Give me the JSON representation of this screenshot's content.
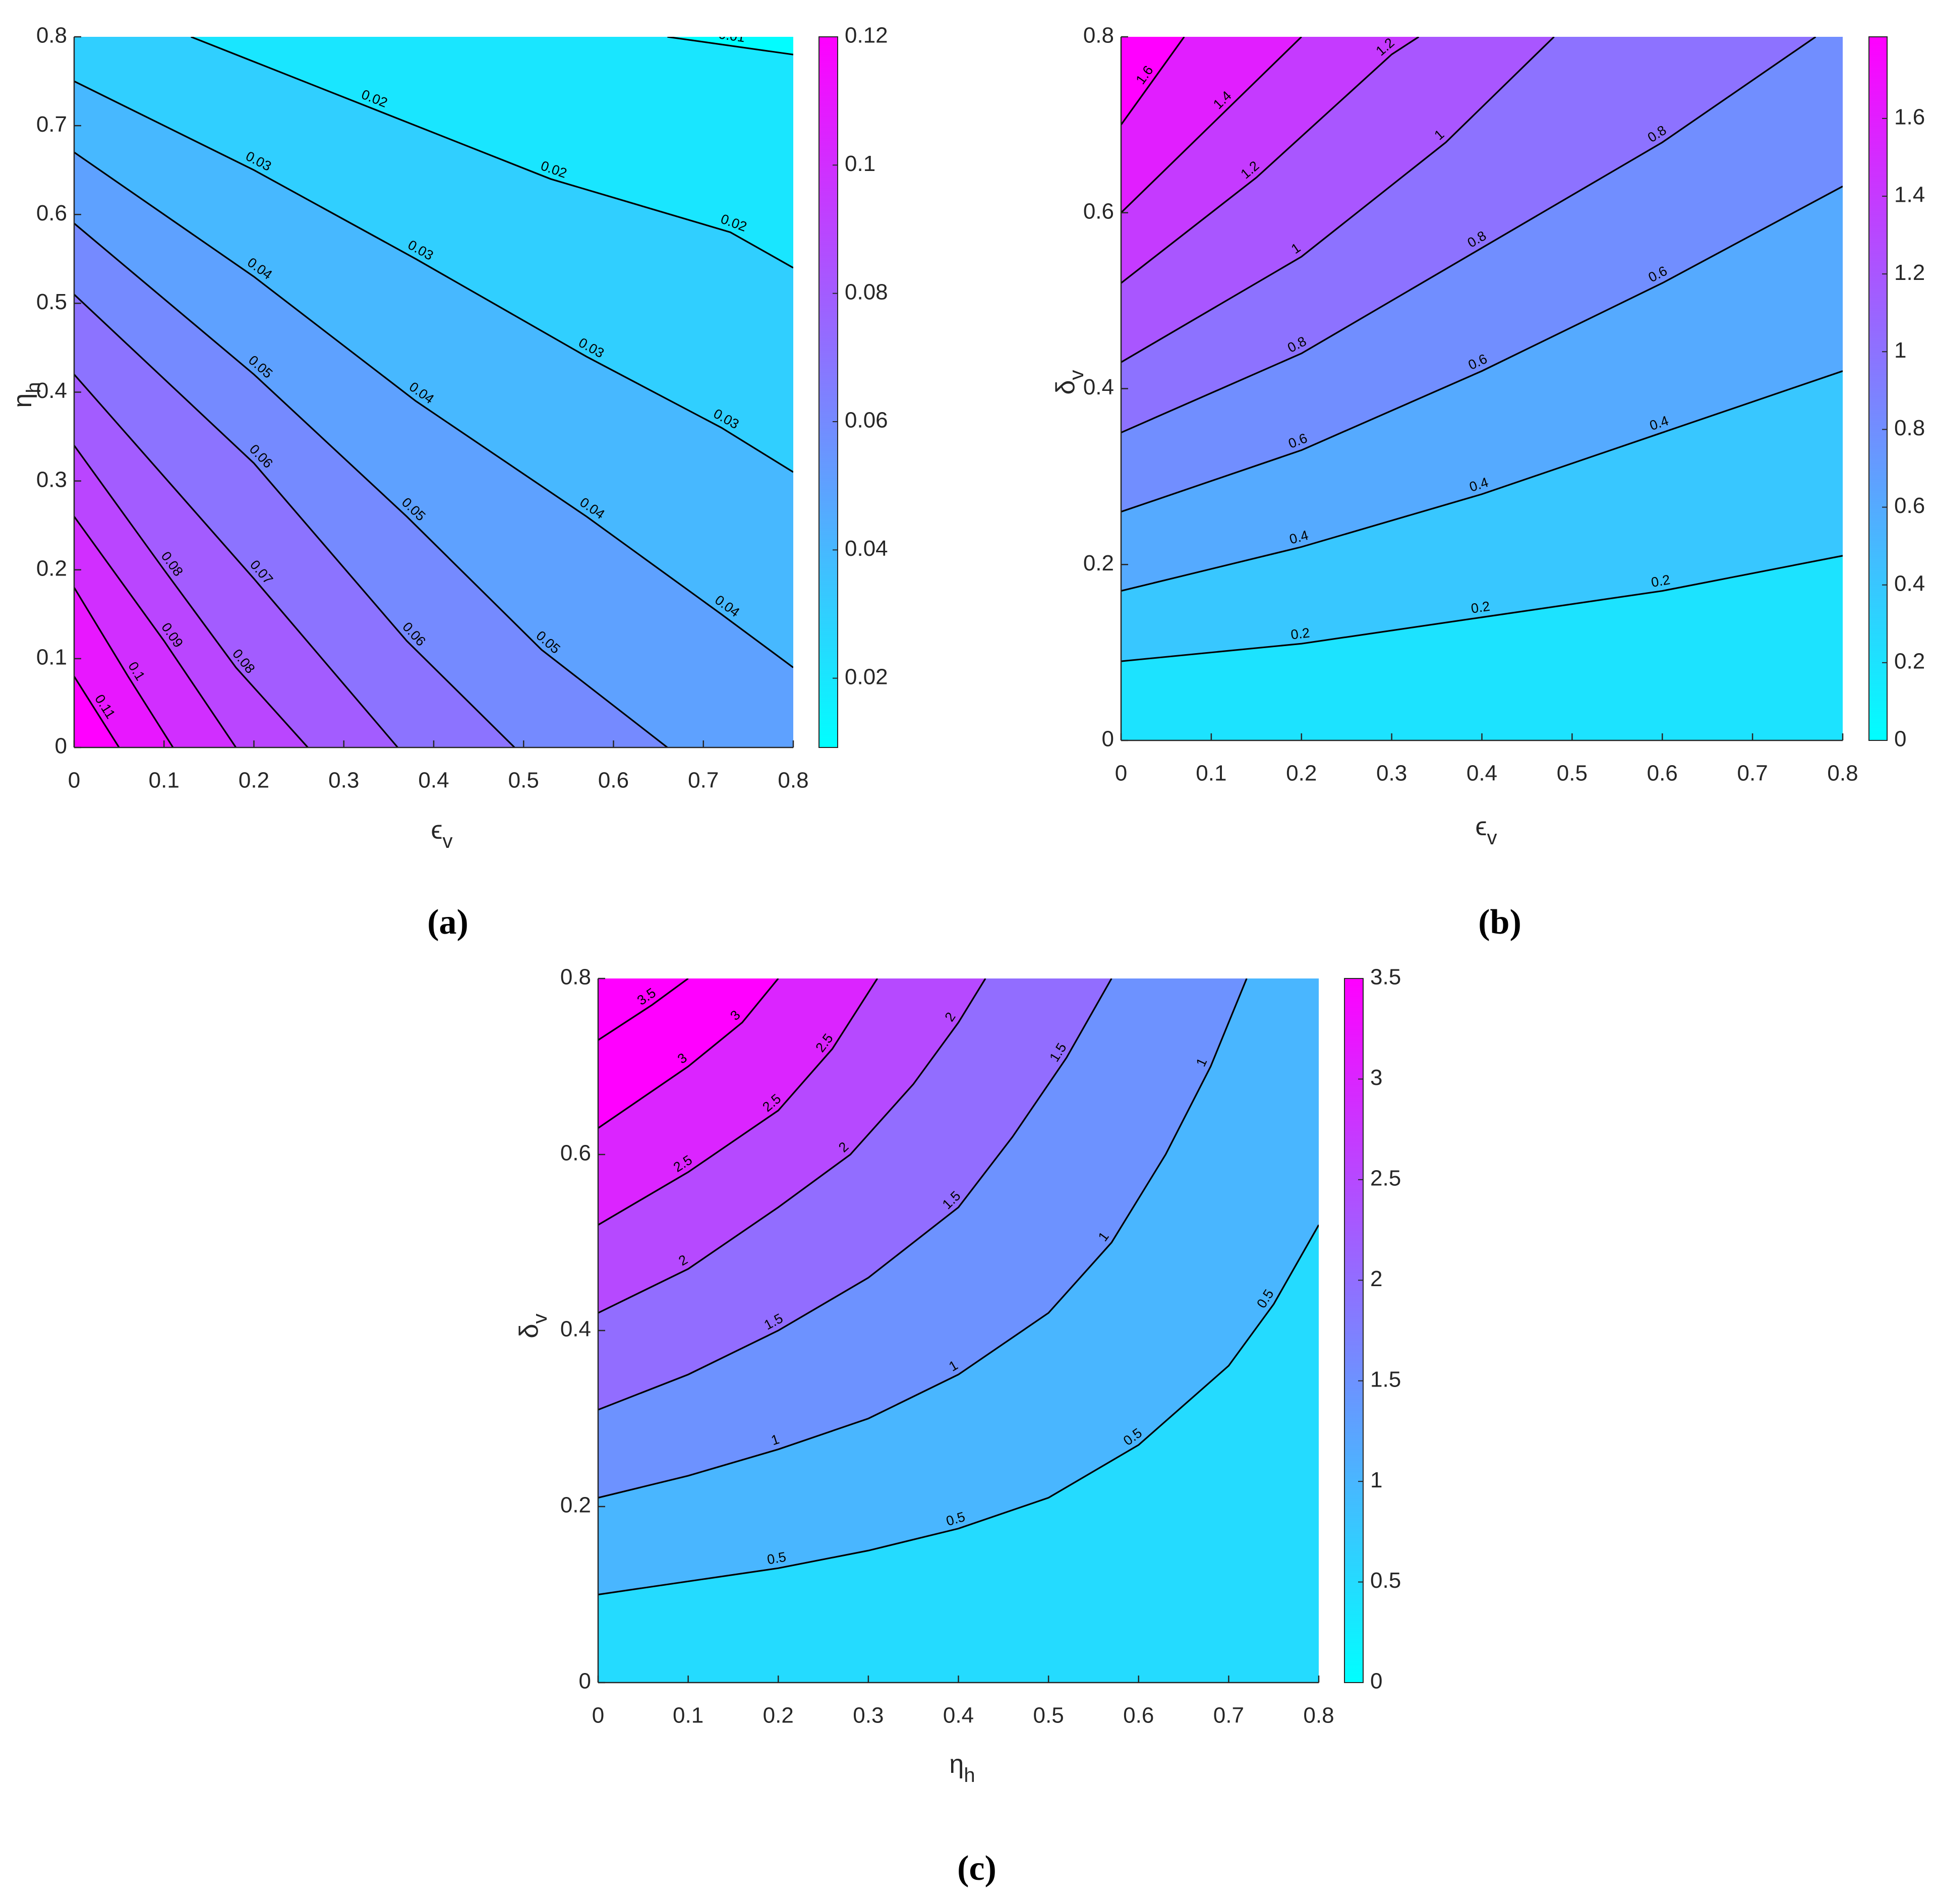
{
  "chart_data": [
    {
      "type": "contour",
      "caption": "(a)",
      "xlabel": {
        "text": "ϵ",
        "sub": "v"
      },
      "ylabel": {
        "text": "η",
        "sub": "h"
      },
      "xlim": [
        0,
        0.8
      ],
      "ylim": [
        0,
        0.8
      ],
      "xticks": [
        0,
        0.1,
        0.2,
        0.3,
        0.4,
        0.5,
        0.6,
        0.7,
        0.8
      ],
      "yticks": [
        0,
        0.1,
        0.2,
        0.3,
        0.4,
        0.5,
        0.6,
        0.7,
        0.8
      ],
      "colormap": [
        "#00ffff",
        "#ff00ff"
      ],
      "clim": [
        0.0092,
        0.12
      ],
      "cticks": [
        0.02,
        0.04,
        0.06,
        0.08,
        0.1,
        0.12
      ],
      "contours": [
        {
          "level": 0.01,
          "x": [
            0.66,
            0.8
          ],
          "y": [
            0.8,
            0.78
          ]
        },
        {
          "level": 0.02,
          "x": [
            0.13,
            0.33,
            0.53,
            0.73,
            0.8
          ],
          "y": [
            0.8,
            0.72,
            0.64,
            0.58,
            0.54
          ]
        },
        {
          "level": 0.03,
          "x": [
            0,
            0.2,
            0.38,
            0.57,
            0.72,
            0.8
          ],
          "y": [
            0.75,
            0.65,
            0.55,
            0.44,
            0.36,
            0.31
          ]
        },
        {
          "level": 0.04,
          "x": [
            0,
            0.2,
            0.38,
            0.57,
            0.72,
            0.8
          ],
          "y": [
            0.67,
            0.53,
            0.39,
            0.26,
            0.15,
            0.09
          ]
        },
        {
          "level": 0.05,
          "x": [
            0,
            0.2,
            0.37,
            0.52,
            0.66
          ],
          "y": [
            0.59,
            0.42,
            0.26,
            0.11,
            0
          ]
        },
        {
          "level": 0.06,
          "x": [
            0,
            0.2,
            0.37,
            0.49
          ],
          "y": [
            0.51,
            0.32,
            0.12,
            0
          ]
        },
        {
          "level": 0.07,
          "x": [
            0,
            0.2,
            0.36
          ],
          "y": [
            0.42,
            0.19,
            0
          ]
        },
        {
          "level": 0.08,
          "x": [
            0,
            0.1,
            0.18,
            0.26
          ],
          "y": [
            0.34,
            0.2,
            0.09,
            0
          ]
        },
        {
          "level": 0.09,
          "x": [
            0,
            0.1,
            0.18
          ],
          "y": [
            0.26,
            0.12,
            0
          ]
        },
        {
          "level": 0.1,
          "x": [
            0,
            0.06,
            0.11
          ],
          "y": [
            0.18,
            0.08,
            0
          ]
        },
        {
          "level": 0.11,
          "x": [
            0,
            0.05
          ],
          "y": [
            0.08,
            0
          ]
        }
      ]
    },
    {
      "type": "contour",
      "caption": "(b)",
      "xlabel": {
        "text": "ϵ",
        "sub": "v"
      },
      "ylabel": {
        "text": "δ",
        "sub": "v"
      },
      "xlim": [
        0,
        0.8
      ],
      "ylim": [
        0,
        0.8
      ],
      "xticks": [
        0,
        0.1,
        0.2,
        0.3,
        0.4,
        0.5,
        0.6,
        0.7,
        0.8
      ],
      "yticks": [
        0,
        0.2,
        0.4,
        0.6,
        0.8
      ],
      "colormap": [
        "#00ffff",
        "#ff00ff"
      ],
      "clim": [
        0,
        1.81
      ],
      "cticks": [
        0,
        0.2,
        0.4,
        0.6,
        0.8,
        1,
        1.2,
        1.4,
        1.6
      ],
      "contours": [
        {
          "level": 0.2,
          "x": [
            0.8,
            0.6,
            0.4,
            0.2,
            0
          ],
          "y": [
            0.21,
            0.17,
            0.14,
            0.11,
            0.09
          ]
        },
        {
          "level": 0.4,
          "x": [
            0.8,
            0.6,
            0.4,
            0.2,
            0
          ],
          "y": [
            0.42,
            0.35,
            0.28,
            0.22,
            0.17
          ]
        },
        {
          "level": 0.6,
          "x": [
            0.8,
            0.6,
            0.4,
            0.2,
            0
          ],
          "y": [
            0.63,
            0.52,
            0.42,
            0.33,
            0.26
          ]
        },
        {
          "level": 0.8,
          "x": [
            0.77,
            0.6,
            0.4,
            0.2,
            0
          ],
          "y": [
            0.8,
            0.68,
            0.56,
            0.44,
            0.35
          ]
        },
        {
          "level": 1,
          "x": [
            0.48,
            0.36,
            0.2,
            0
          ],
          "y": [
            0.8,
            0.68,
            0.55,
            0.43
          ]
        },
        {
          "level": 1.2,
          "x": [
            0.33,
            0.3,
            0.15,
            0
          ],
          "y": [
            0.8,
            0.78,
            0.64,
            0.52
          ]
        },
        {
          "level": 1.4,
          "x": [
            0.2,
            0.12,
            0
          ],
          "y": [
            0.8,
            0.72,
            0.6
          ]
        },
        {
          "level": 1.6,
          "x": [
            0.07,
            0
          ],
          "y": [
            0.8,
            0.7
          ]
        }
      ]
    },
    {
      "type": "contour",
      "caption": "(c)",
      "xlabel": {
        "text": "η",
        "sub": "h"
      },
      "ylabel": {
        "text": "δ",
        "sub": "v"
      },
      "xlim": [
        0,
        0.8
      ],
      "ylim": [
        0,
        0.8
      ],
      "xticks": [
        0,
        0.1,
        0.2,
        0.3,
        0.4,
        0.5,
        0.6,
        0.7,
        0.8
      ],
      "yticks": [
        0,
        0.2,
        0.4,
        0.6,
        0.8
      ],
      "colormap": [
        "#00ffff",
        "#ff00ff"
      ],
      "clim": [
        0,
        3.5
      ],
      "cticks": [
        0,
        0.5,
        1,
        1.5,
        2,
        2.5,
        3,
        3.5
      ],
      "contours": [
        {
          "level": 0.5,
          "x": [
            0.8,
            0.75,
            0.7,
            0.6,
            0.5,
            0.4,
            0.3,
            0.2,
            0.1,
            0
          ],
          "y": [
            0.52,
            0.43,
            0.36,
            0.27,
            0.21,
            0.175,
            0.15,
            0.13,
            0.115,
            0.1
          ]
        },
        {
          "level": 1,
          "x": [
            0.72,
            0.68,
            0.63,
            0.57,
            0.5,
            0.4,
            0.3,
            0.2,
            0.1,
            0
          ],
          "y": [
            0.8,
            0.7,
            0.6,
            0.5,
            0.42,
            0.35,
            0.3,
            0.265,
            0.235,
            0.21
          ]
        },
        {
          "level": 1.5,
          "x": [
            0.57,
            0.52,
            0.46,
            0.4,
            0.3,
            0.2,
            0.1,
            0
          ],
          "y": [
            0.8,
            0.71,
            0.62,
            0.54,
            0.46,
            0.4,
            0.35,
            0.31
          ]
        },
        {
          "level": 2,
          "x": [
            0.43,
            0.4,
            0.35,
            0.28,
            0.2,
            0.1,
            0
          ],
          "y": [
            0.8,
            0.75,
            0.68,
            0.6,
            0.54,
            0.47,
            0.42
          ]
        },
        {
          "level": 2.5,
          "x": [
            0.31,
            0.26,
            0.2,
            0.1,
            0
          ],
          "y": [
            0.8,
            0.72,
            0.65,
            0.58,
            0.52
          ]
        },
        {
          "level": 3,
          "x": [
            0.2,
            0.16,
            0.1,
            0
          ],
          "y": [
            0.8,
            0.75,
            0.7,
            0.63
          ]
        },
        {
          "level": 3.5,
          "x": [
            0.1,
            0.06,
            0
          ],
          "y": [
            0.8,
            0.77,
            0.73
          ]
        }
      ]
    }
  ]
}
